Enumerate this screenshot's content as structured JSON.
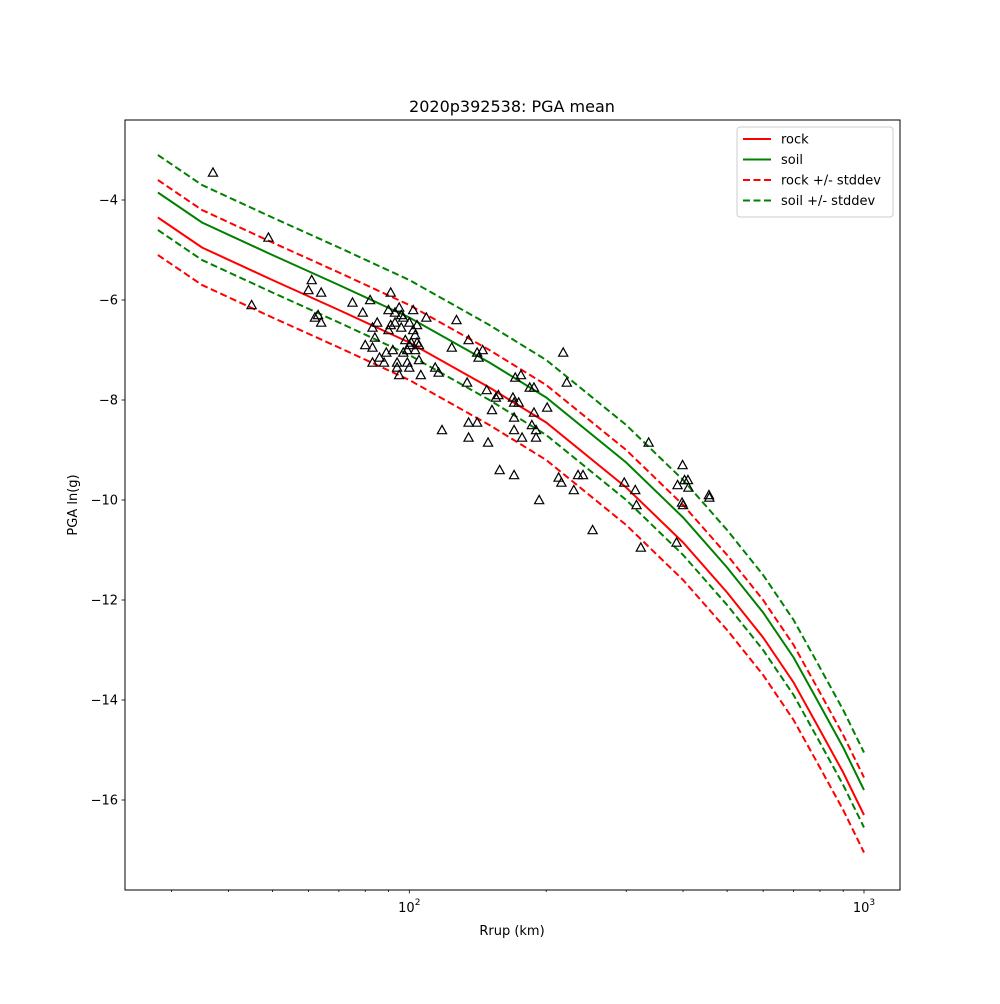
{
  "chart_data": {
    "type": "scatter",
    "title": "2020p392538: PGA mean",
    "xlabel": "Rrup (km)",
    "ylabel": "PGA ln(g)",
    "xscale": "log",
    "xlim": [
      23.7,
      1200
    ],
    "ylim": [
      -17.8,
      -2.4
    ],
    "x_ticks": [
      {
        "value": 100,
        "base": "10",
        "exp": "2"
      },
      {
        "value": 1000,
        "base": "10",
        "exp": "3"
      }
    ],
    "y_ticks": [
      {
        "value": -16,
        "label": "−16"
      },
      {
        "value": -14,
        "label": "−14"
      },
      {
        "value": -12,
        "label": "−12"
      },
      {
        "value": -10,
        "label": "−10"
      },
      {
        "value": -8,
        "label": "−8"
      },
      {
        "value": -6,
        "label": "−6"
      },
      {
        "value": -4,
        "label": "−4"
      }
    ],
    "grid": false,
    "legend_position": "upper right",
    "series": [
      {
        "name": "rock",
        "style": "solid",
        "color": "#ff0000",
        "x": [
          28,
          35,
          50,
          70,
          100,
          150,
          200,
          300,
          400,
          500,
          600,
          700,
          800,
          900,
          1000
        ],
        "y": [
          -4.35,
          -4.95,
          -5.6,
          -6.2,
          -6.85,
          -7.75,
          -8.45,
          -9.75,
          -10.85,
          -11.85,
          -12.75,
          -13.65,
          -14.6,
          -15.45,
          -16.3
        ]
      },
      {
        "name": "soil",
        "style": "solid",
        "color": "#008000",
        "x": [
          28,
          35,
          50,
          70,
          100,
          150,
          200,
          300,
          400,
          500,
          600,
          700,
          800,
          900,
          1000
        ],
        "y": [
          -3.85,
          -4.45,
          -5.1,
          -5.7,
          -6.35,
          -7.25,
          -7.95,
          -9.25,
          -10.35,
          -11.35,
          -12.25,
          -13.15,
          -14.1,
          -14.95,
          -15.8
        ]
      },
      {
        "name": "rock +/- stddev",
        "style": "dashed",
        "color": "#ff0000",
        "x": [
          28,
          35,
          50,
          70,
          100,
          150,
          200,
          300,
          400,
          500,
          600,
          700,
          800,
          900,
          1000
        ],
        "y": [
          -3.6,
          -4.2,
          -4.85,
          -5.45,
          -6.1,
          -7.0,
          -7.7,
          -9.0,
          -10.1,
          -11.1,
          -12.0,
          -12.9,
          -13.85,
          -14.7,
          -15.55
        ]
      },
      {
        "name": "rock +/- stddev (lower)",
        "style": "dashed",
        "color": "#ff0000",
        "x": [
          28,
          35,
          50,
          70,
          100,
          150,
          200,
          300,
          400,
          500,
          600,
          700,
          800,
          900,
          1000
        ],
        "y": [
          -5.1,
          -5.7,
          -6.35,
          -6.95,
          -7.6,
          -8.5,
          -9.2,
          -10.5,
          -11.6,
          -12.6,
          -13.5,
          -14.4,
          -15.35,
          -16.2,
          -17.05
        ]
      },
      {
        "name": "soil +/- stddev",
        "style": "dashed",
        "color": "#008000",
        "x": [
          28,
          35,
          50,
          70,
          100,
          150,
          200,
          300,
          400,
          500,
          600,
          700,
          800,
          900,
          1000
        ],
        "y": [
          -3.1,
          -3.7,
          -4.35,
          -4.95,
          -5.6,
          -6.5,
          -7.2,
          -8.5,
          -9.6,
          -10.6,
          -11.5,
          -12.4,
          -13.35,
          -14.2,
          -15.05
        ]
      },
      {
        "name": "soil +/- stddev (lower)",
        "style": "dashed",
        "color": "#008000",
        "x": [
          28,
          35,
          50,
          70,
          100,
          150,
          200,
          300,
          400,
          500,
          600,
          700,
          800,
          900,
          1000
        ],
        "y": [
          -4.6,
          -5.2,
          -5.85,
          -6.45,
          -7.1,
          -8.0,
          -8.7,
          -10.0,
          -11.1,
          -12.1,
          -13.0,
          -13.9,
          -14.85,
          -15.7,
          -16.55
        ]
      }
    ],
    "legend_entries": [
      {
        "label": "rock",
        "color": "#ff0000",
        "style": "solid"
      },
      {
        "label": "soil",
        "color": "#008000",
        "style": "solid"
      },
      {
        "label": "rock +/- stddev",
        "color": "#ff0000",
        "style": "dashed"
      },
      {
        "label": "soil +/- stddev",
        "color": "#008000",
        "style": "dashed"
      }
    ],
    "observations": {
      "marker": "triangle",
      "color": "#000000",
      "points": [
        [
          37,
          -3.45
        ],
        [
          49,
          -4.75
        ],
        [
          45,
          -6.1
        ],
        [
          60,
          -5.8
        ],
        [
          61,
          -5.6
        ],
        [
          62,
          -6.35
        ],
        [
          63,
          -6.3
        ],
        [
          64,
          -5.85
        ],
        [
          64,
          -6.45
        ],
        [
          75,
          -6.05
        ],
        [
          79,
          -6.25
        ],
        [
          82,
          -6.0
        ],
        [
          80,
          -6.9
        ],
        [
          83,
          -6.55
        ],
        [
          84,
          -6.75
        ],
        [
          85,
          -6.45
        ],
        [
          83,
          -6.95
        ],
        [
          83,
          -7.25
        ],
        [
          86,
          -7.15
        ],
        [
          88,
          -7.25
        ],
        [
          89,
          -7.05
        ],
        [
          90,
          -6.6
        ],
        [
          90,
          -6.2
        ],
        [
          91,
          -5.85
        ],
        [
          91,
          -6.5
        ],
        [
          92,
          -7.0
        ],
        [
          93,
          -6.25
        ],
        [
          93,
          -6.45
        ],
        [
          94,
          -7.25
        ],
        [
          94,
          -7.35
        ],
        [
          95,
          -7.5
        ],
        [
          95,
          -6.15
        ],
        [
          96,
          -6.3
        ],
        [
          96,
          -6.55
        ],
        [
          97,
          -7.05
        ],
        [
          97,
          -6.35
        ],
        [
          98,
          -6.8
        ],
        [
          99,
          -7.25
        ],
        [
          99,
          -7.0
        ],
        [
          100,
          -6.9
        ],
        [
          100,
          -6.45
        ],
        [
          100,
          -7.35
        ],
        [
          101,
          -6.85
        ],
        [
          102,
          -6.2
        ],
        [
          102,
          -6.6
        ],
        [
          103,
          -6.7
        ],
        [
          103,
          -7.0
        ],
        [
          104,
          -6.5
        ],
        [
          104,
          -6.85
        ],
        [
          105,
          -6.9
        ],
        [
          105,
          -7.2
        ],
        [
          106,
          -7.5
        ],
        [
          109,
          -6.35
        ],
        [
          114,
          -7.35
        ],
        [
          116,
          -7.45
        ],
        [
          118,
          -8.6
        ],
        [
          124,
          -6.95
        ],
        [
          127,
          -6.4
        ],
        [
          135,
          -6.8
        ],
        [
          134,
          -7.65
        ],
        [
          135,
          -8.75
        ],
        [
          135,
          -8.45
        ],
        [
          141,
          -7.05
        ],
        [
          141,
          -8.45
        ],
        [
          142,
          -7.15
        ],
        [
          145,
          -7.0
        ],
        [
          148,
          -7.8
        ],
        [
          149,
          -8.85
        ],
        [
          152,
          -8.2
        ],
        [
          155,
          -7.95
        ],
        [
          157,
          -7.9
        ],
        [
          158,
          -9.4
        ],
        [
          169,
          -7.95
        ],
        [
          170,
          -8.35
        ],
        [
          171,
          -7.55
        ],
        [
          170,
          -8.05
        ],
        [
          170,
          -8.6
        ],
        [
          170,
          -9.5
        ],
        [
          174,
          -8.05
        ],
        [
          176,
          -7.5
        ],
        [
          177,
          -8.75
        ],
        [
          184,
          -7.75
        ],
        [
          186,
          -8.5
        ],
        [
          188,
          -8.25
        ],
        [
          188,
          -7.75
        ],
        [
          190,
          -8.6
        ],
        [
          190,
          -8.75
        ],
        [
          193,
          -10.0
        ],
        [
          201,
          -8.15
        ],
        [
          213,
          -9.55
        ],
        [
          216,
          -9.65
        ],
        [
          218,
          -7.05
        ],
        [
          222,
          -7.65
        ],
        [
          230,
          -9.8
        ],
        [
          235,
          -9.5
        ],
        [
          241,
          -9.5
        ],
        [
          253,
          -10.6
        ],
        [
          297,
          -9.65
        ],
        [
          314,
          -9.8
        ],
        [
          316,
          -10.1
        ],
        [
          323,
          -10.95
        ],
        [
          336,
          -8.85
        ],
        [
          387,
          -10.85
        ],
        [
          389,
          -9.7
        ],
        [
          398,
          -10.05
        ],
        [
          399,
          -9.3
        ],
        [
          400,
          -10.1
        ],
        [
          403,
          -9.6
        ],
        [
          410,
          -9.6
        ],
        [
          411,
          -9.75
        ],
        [
          456,
          -9.9
        ],
        [
          457,
          -9.95
        ]
      ]
    }
  }
}
